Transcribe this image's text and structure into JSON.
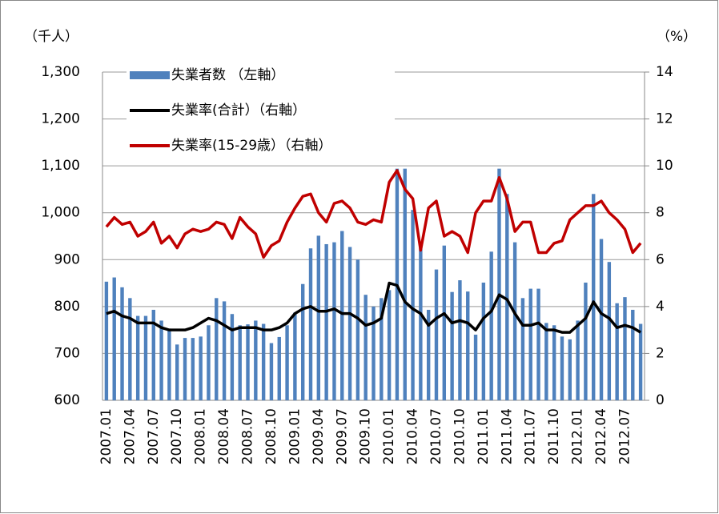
{
  "chart_data": {
    "type": "bar_line",
    "y_label": "（千人）",
    "y2_label": "（%）",
    "categories": [
      "2007.01",
      null,
      null,
      "2007.04",
      null,
      null,
      "2007.07",
      null,
      null,
      "2007.10",
      null,
      null,
      "2008.01",
      null,
      null,
      "2008.04",
      null,
      null,
      "2008.07",
      null,
      null,
      "2008.10",
      null,
      null,
      "2009.01",
      null,
      null,
      "2009.04",
      null,
      null,
      "2009.07",
      null,
      null,
      "2009.10",
      null,
      null,
      "2010.01",
      null,
      null,
      "2010.04",
      null,
      null,
      "2010.07",
      null,
      null,
      "2010.10",
      null,
      null,
      "2011.01",
      null,
      null,
      "2011.04",
      null,
      null,
      "2011.07",
      null,
      null,
      "2011.10",
      null,
      null,
      "2012.01",
      null,
      null,
      "2012.04",
      null,
      null,
      "2012.07",
      null,
      null
    ],
    "series": [
      {
        "name": "失業者数 （左軸）",
        "type": "bar",
        "color": "#4f81bd",
        "values": [
          853,
          862,
          841,
          818,
          780,
          780,
          793,
          770,
          753,
          719,
          733,
          733,
          736,
          760,
          818,
          811,
          784,
          760,
          762,
          770,
          763,
          722,
          735,
          760,
          787,
          848,
          924,
          951,
          933,
          937,
          961,
          927,
          900,
          825,
          800,
          818,
          835,
          1094,
          1094,
          1006,
          934,
          793,
          879,
          930,
          831,
          856,
          832,
          740,
          851,
          917,
          1094,
          1040,
          937,
          818,
          838,
          838,
          765,
          760,
          736,
          730,
          770,
          851,
          1040,
          944,
          895,
          807,
          820,
          793,
          763
        ]
      },
      {
        "name": "失業率(合計）（右軸）",
        "type": "line",
        "axis": "y2",
        "color": "#000000",
        "values": [
          3.7,
          3.8,
          3.6,
          3.5,
          3.3,
          3.3,
          3.3,
          3.1,
          3.0,
          3.0,
          3.0,
          3.1,
          3.3,
          3.5,
          3.4,
          3.2,
          3.0,
          3.1,
          3.1,
          3.1,
          3.0,
          3.0,
          3.1,
          3.3,
          3.7,
          3.9,
          4.0,
          3.8,
          3.8,
          3.9,
          3.7,
          3.7,
          3.5,
          3.2,
          3.3,
          3.5,
          5.0,
          4.9,
          4.2,
          3.9,
          3.7,
          3.2,
          3.5,
          3.7,
          3.3,
          3.4,
          3.3,
          3.0,
          3.5,
          3.8,
          4.5,
          4.3,
          3.7,
          3.2,
          3.2,
          3.3,
          3.0,
          3.0,
          2.9,
          2.9,
          3.2,
          3.5,
          4.2,
          3.7,
          3.5,
          3.1,
          3.2,
          3.1,
          2.9
        ]
      },
      {
        "name": "失業率(15-29歳）（右軸）",
        "type": "line",
        "axis": "y2",
        "color": "#c00000",
        "values": [
          7.4,
          7.8,
          7.5,
          7.6,
          7.0,
          7.2,
          7.6,
          6.7,
          7.0,
          6.5,
          7.1,
          7.3,
          7.2,
          7.3,
          7.6,
          7.5,
          6.9,
          7.8,
          7.4,
          7.1,
          6.1,
          6.6,
          6.8,
          7.6,
          8.2,
          8.7,
          8.8,
          8.0,
          7.6,
          8.4,
          8.5,
          8.2,
          7.6,
          7.5,
          7.7,
          7.6,
          9.3,
          9.8,
          9.0,
          8.6,
          6.4,
          8.2,
          8.5,
          7.0,
          7.2,
          7.0,
          6.3,
          8.0,
          8.5,
          8.5,
          9.5,
          8.6,
          7.2,
          7.6,
          7.6,
          6.3,
          6.3,
          6.7,
          6.8,
          7.7,
          8.0,
          8.3,
          8.3,
          8.5,
          8.0,
          7.7,
          7.3,
          6.3,
          6.7
        ]
      }
    ],
    "ylim": [
      600,
      1300
    ],
    "yticks": [
      600,
      700,
      800,
      900,
      {
        "value": 1000,
        "label": "1,000"
      },
      {
        "value": 1100,
        "label": "1,100"
      },
      {
        "value": 1200,
        "label": "1,200"
      },
      {
        "value": 1300,
        "label": "1,300"
      }
    ],
    "y2lim": [
      0,
      14
    ],
    "y2ticks": [
      0,
      2,
      4,
      6,
      8,
      10,
      12,
      14
    ],
    "grid": true,
    "legend": "upper left"
  }
}
